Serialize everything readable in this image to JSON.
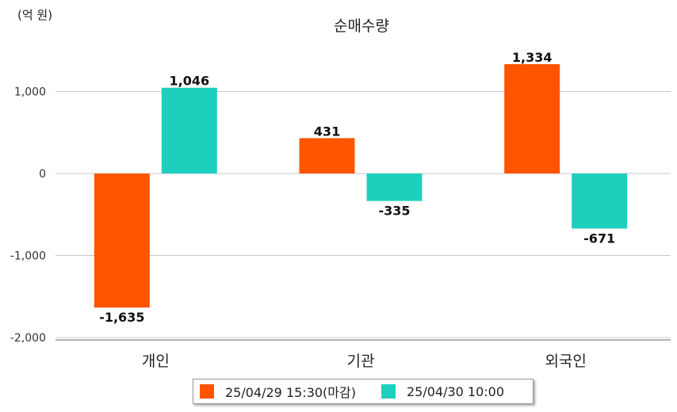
{
  "chart_data": {
    "type": "bar",
    "unit_label": "(억 원)",
    "title": "순매수량",
    "categories": [
      "개인",
      "기관",
      "외국인"
    ],
    "series": [
      {
        "name": "25/04/29 15:30(마감)",
        "values": [
          -1635,
          431,
          1334
        ],
        "labels": [
          "-1,635",
          "431",
          "1,334"
        ],
        "color": "#ff5500"
      },
      {
        "name": "25/04/30 10:00",
        "values": [
          1046,
          -335,
          -671
        ],
        "labels": [
          "1,046",
          "-335",
          "-671"
        ],
        "color": "#1fcfbe"
      }
    ],
    "yticks": [
      1000,
      0,
      -1000,
      -2000
    ],
    "ytick_labels": [
      "1,000",
      "0",
      "-1,000",
      "-2,000"
    ],
    "ylim": [
      -2000,
      1600
    ],
    "grid": true,
    "legend_position": "bottom"
  }
}
